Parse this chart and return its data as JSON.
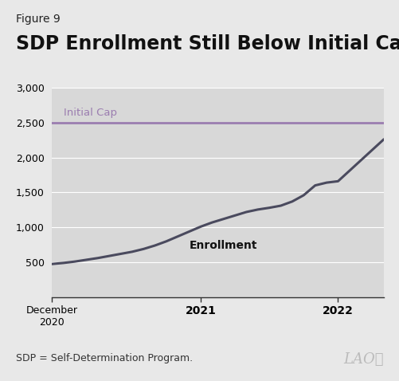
{
  "figure_label": "Figure 9",
  "title": "SDP Enrollment Still Below Initial Cap",
  "footnote": "SDP = Self-Determination Program.",
  "initial_cap_value": 2500,
  "initial_cap_label": "Initial Cap",
  "enrollment_label": "Enrollment",
  "ylim": [
    0,
    3000
  ],
  "yticks": [
    500,
    1000,
    1500,
    2000,
    2500,
    3000
  ],
  "background_color": "#e8e8e8",
  "plot_bg_color": "#d8d8d8",
  "line_color": "#4a4a5e",
  "cap_line_color": "#9b7db0",
  "cap_label_color": "#9b7db0",
  "enrollment_color": "#111111",
  "x_data": [
    0,
    1,
    2,
    3,
    4,
    5,
    6,
    7,
    8,
    9,
    10,
    11,
    12,
    13,
    14,
    15,
    16,
    17,
    18,
    19,
    20,
    21,
    22,
    23,
    24,
    25,
    26,
    27,
    28,
    29
  ],
  "y_data": [
    475,
    490,
    510,
    535,
    560,
    590,
    620,
    650,
    690,
    740,
    800,
    870,
    940,
    1010,
    1070,
    1120,
    1170,
    1220,
    1255,
    1280,
    1310,
    1370,
    1460,
    1600,
    1640,
    1660,
    1810,
    1960,
    2110,
    2260
  ],
  "x_tick_positions": [
    0,
    13,
    25
  ],
  "x_tick_labels": [
    "December\n2020",
    "2021",
    "2022"
  ],
  "x_tick_bold": [
    false,
    true,
    true
  ],
  "title_fontsize": 17,
  "figure_label_fontsize": 10,
  "footnote_fontsize": 9,
  "ytick_fontsize": 9,
  "xtick_fontsize": 9,
  "grid_color": "#c0c0c0",
  "spine_color": "#333333",
  "laoa_color": "#bbbbbb"
}
